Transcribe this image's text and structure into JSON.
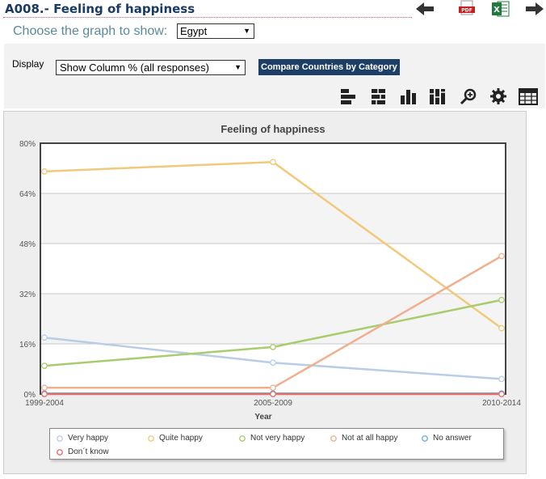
{
  "header": {
    "title": "A008.- Feeling of happiness",
    "choose_label": "Choose the graph to show:",
    "country_selected": "Egypt"
  },
  "toolbar": {
    "display_label": "Display",
    "display_selected": "Show Column % (all responses)",
    "compare_button": "Compare Countries by Category"
  },
  "icons": {
    "nav": [
      "arrow-left-icon",
      "pdf-icon",
      "excel-icon",
      "arrow-right-icon"
    ],
    "tools": [
      "horizontal-bar-icon",
      "stacked-bar-icon",
      "column-chart-icon",
      "stacked-column-icon",
      "zoom-icon",
      "settings-gear-icon",
      "table-icon"
    ]
  },
  "chart_data": {
    "type": "line",
    "title": "Feeling of happiness",
    "xlabel": "Year",
    "ylabel": "",
    "categories": [
      "1999-2004",
      "2005-2009",
      "2010-2014"
    ],
    "y_ticks": [
      "0%",
      "16%",
      "32%",
      "48%",
      "64%",
      "80%"
    ],
    "ylim": [
      0,
      80
    ],
    "grid": true,
    "legend_position": "bottom",
    "series": [
      {
        "name": "Very happy",
        "color": "#b9cde6",
        "values": [
          18.0,
          10.0,
          4.8
        ]
      },
      {
        "name": "Quite happy",
        "color": "#f0c97a",
        "values": [
          71.0,
          74.0,
          21.0
        ]
      },
      {
        "name": "Not very happy",
        "color": "#a9cc6e",
        "values": [
          9.0,
          15.0,
          30.0
        ]
      },
      {
        "name": "Not at all happy",
        "color": "#f0b090",
        "values": [
          2.0,
          2.0,
          44.0
        ]
      },
      {
        "name": "No answer",
        "color": "#6fb0d8",
        "values": [
          0.2,
          0.2,
          0.2
        ]
      },
      {
        "name": "Don´t know",
        "color": "#e07070",
        "values": [
          0.0,
          0.0,
          0.0
        ]
      }
    ]
  }
}
